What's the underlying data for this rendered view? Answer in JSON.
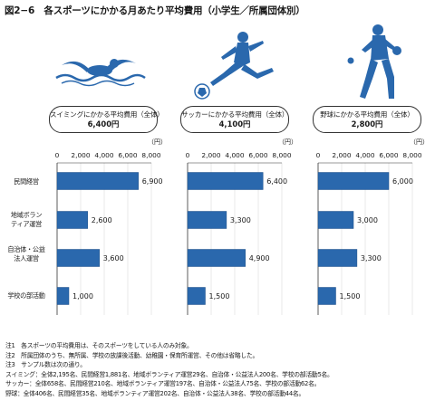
{
  "title": "図2−6　各スポーツにかかる月あたり平均費用（小学生／所属団体別）",
  "chart_data": {
    "type": "bar",
    "orientation": "horizontal",
    "unit_label": "（円）",
    "axis_ticks": [
      "0",
      "2,000",
      "4,000",
      "6,000",
      "8,000"
    ],
    "xlim": [
      0,
      8000
    ],
    "bar_color": "#2a68ad",
    "categories": [
      "民間経営",
      "地域ボランティア運営",
      "自治体・公益法人運営",
      "学校の部活動"
    ],
    "category_display": [
      "民間経営",
      "地域ボラン\nティア運営",
      "自治体・公益\n法人運営",
      "学校の部活動"
    ],
    "series": [
      {
        "name": "スイミング",
        "summary_label": "スイミングにかかる平均費用（全体）",
        "summary_value": "6,400円",
        "values": [
          6900,
          2600,
          3600,
          1000
        ],
        "value_labels": [
          "6,900",
          "2,600",
          "3,600",
          "1,000"
        ]
      },
      {
        "name": "サッカー",
        "summary_label": "サッカーにかかる平均費用（全体）",
        "summary_value": "4,100円",
        "values": [
          6400,
          3300,
          4900,
          1500
        ],
        "value_labels": [
          "6,400",
          "3,300",
          "4,900",
          "1,500"
        ]
      },
      {
        "name": "野球",
        "summary_label": "野球にかかる平均費用（全体）",
        "summary_value": "2,800円",
        "values": [
          6000,
          3000,
          3300,
          1500
        ],
        "value_labels": [
          "6,000",
          "3,000",
          "3,300",
          "1,500"
        ]
      }
    ]
  },
  "notes": [
    "注1　各スポーツの平均費用は、そのスポーツをしている人のみ対象。",
    "注2　所属団体のうち、無所属、学校の放課後活動、幼稚園・保育所運営、その他は省略した。",
    "注3　サンプル数は次の通り。",
    "スイミング：全体2,195名、民間経営1,881名、地域ボランティア運営29名、自治体・公益法人200名、学校の部活動5名。",
    "サッカー：全体658名、民間経営210名、地域ボランティア運営197名、自治体・公益法人75名、学校の部活動62名。",
    "野球：全体406名、民間経営35名、地域ボランティア運営202名、自治体・公益法人38名、学校の部活動44名。"
  ],
  "icons": {
    "swimmer": "swimmer-icon",
    "soccer": "soccer-player-icon",
    "baseball": "baseball-pitcher-icon"
  },
  "colors": {
    "figure": "#2a68ad",
    "grid": "#d9d9d9"
  }
}
